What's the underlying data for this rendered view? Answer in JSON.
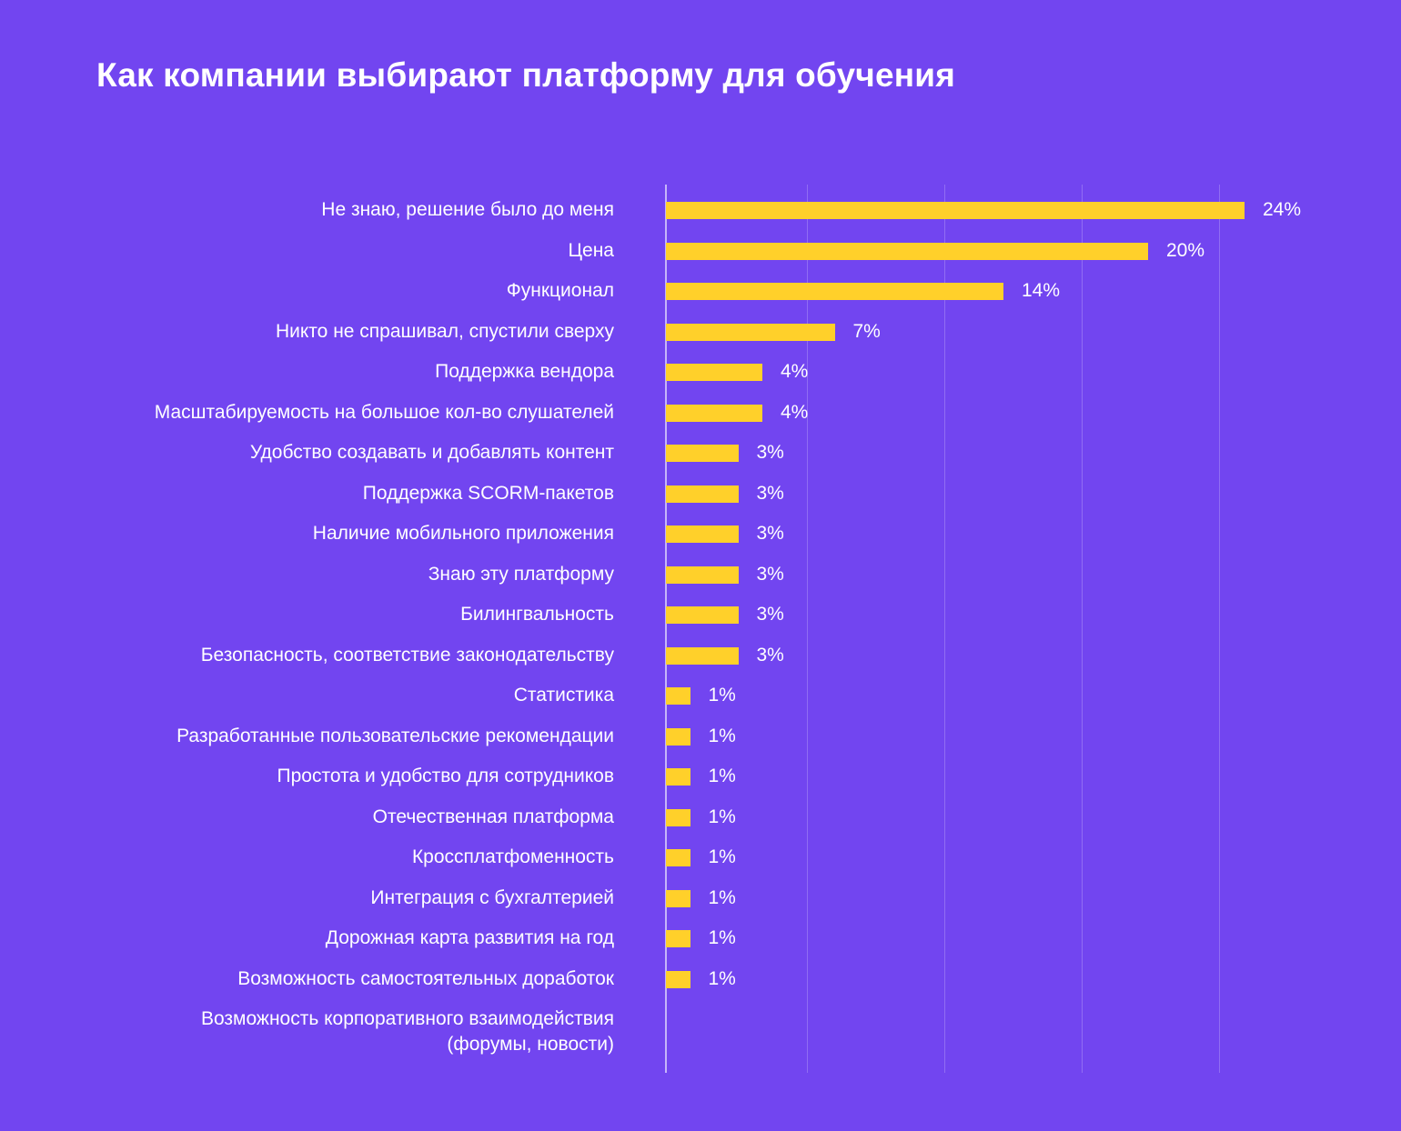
{
  "chart_data": {
    "type": "bar",
    "orientation": "horizontal",
    "title": "Как компании выбирают платформу для обучения",
    "xlabel": "",
    "ylabel": "",
    "grid": true,
    "categories": [
      "Не знаю, решение было до меня",
      "Цена",
      "Функционал",
      "Никто не спрашивал, спустили сверху",
      "Поддержка вендора",
      "Масштабируемость на большое кол-во слушателей",
      "Удобство создавать и добавлять контент",
      "Поддержка SCORM-пакетов",
      "Наличие мобильного приложения",
      "Знаю эту платформу",
      "Билингвальность",
      "Безопасность, соответствие законодательству",
      "Статистика",
      "Разработанные пользовательские рекомендации",
      "Простота и удобство для сотрудников",
      "Отечественная платформа",
      "Кроссплатфоменность",
      "Интеграция с бухгалтерией",
      "Дорожная карта развития на год",
      "Возможность самостоятельных доработок",
      "Возможность корпоративного взаимодействия\n(форумы, новости)"
    ],
    "values": [
      24,
      20,
      14,
      7,
      4,
      4,
      3,
      3,
      3,
      3,
      3,
      3,
      1,
      1,
      1,
      1,
      1,
      1,
      1,
      1,
      null
    ],
    "value_labels": [
      "24%",
      "20%",
      "14%",
      "7%",
      "4%",
      "4%",
      "3%",
      "3%",
      "3%",
      "3%",
      "3%",
      "3%",
      "1%",
      "1%",
      "1%",
      "1%",
      "1%",
      "1%",
      "1%",
      "1%",
      ""
    ],
    "xlim": [
      0,
      28
    ],
    "colors": {
      "background": "#7245F0",
      "bar": "#FFD02A",
      "text": "#FFFFFF"
    }
  }
}
